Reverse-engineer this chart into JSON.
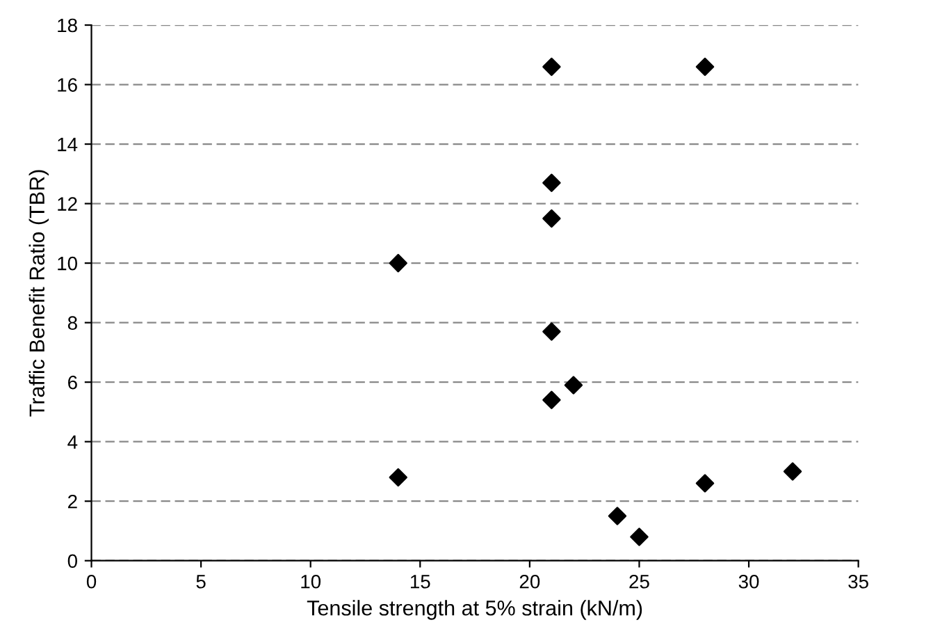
{
  "chart_data": {
    "type": "scatter",
    "xlabel": "Tensile strength at 5% strain (kN/m)",
    "ylabel": "Traffic Benefit Ratio (TBR)",
    "x": [
      21,
      28,
      21,
      21,
      14,
      21,
      22,
      21,
      14,
      28,
      32,
      24,
      25
    ],
    "values": [
      16.6,
      16.6,
      12.7,
      11.5,
      10.0,
      7.7,
      5.9,
      5.4,
      2.8,
      2.6,
      3.0,
      1.5,
      0.8
    ],
    "color": "#000000",
    "marker": "diamond",
    "xlim": [
      0,
      35
    ],
    "xticks": [
      0,
      5,
      10,
      15,
      20,
      25,
      30,
      35
    ],
    "ylim": [
      0,
      18
    ],
    "yticks": [
      0,
      2,
      4,
      6,
      8,
      10,
      12,
      14,
      16,
      18
    ],
    "grid": "y",
    "legend": false
  }
}
